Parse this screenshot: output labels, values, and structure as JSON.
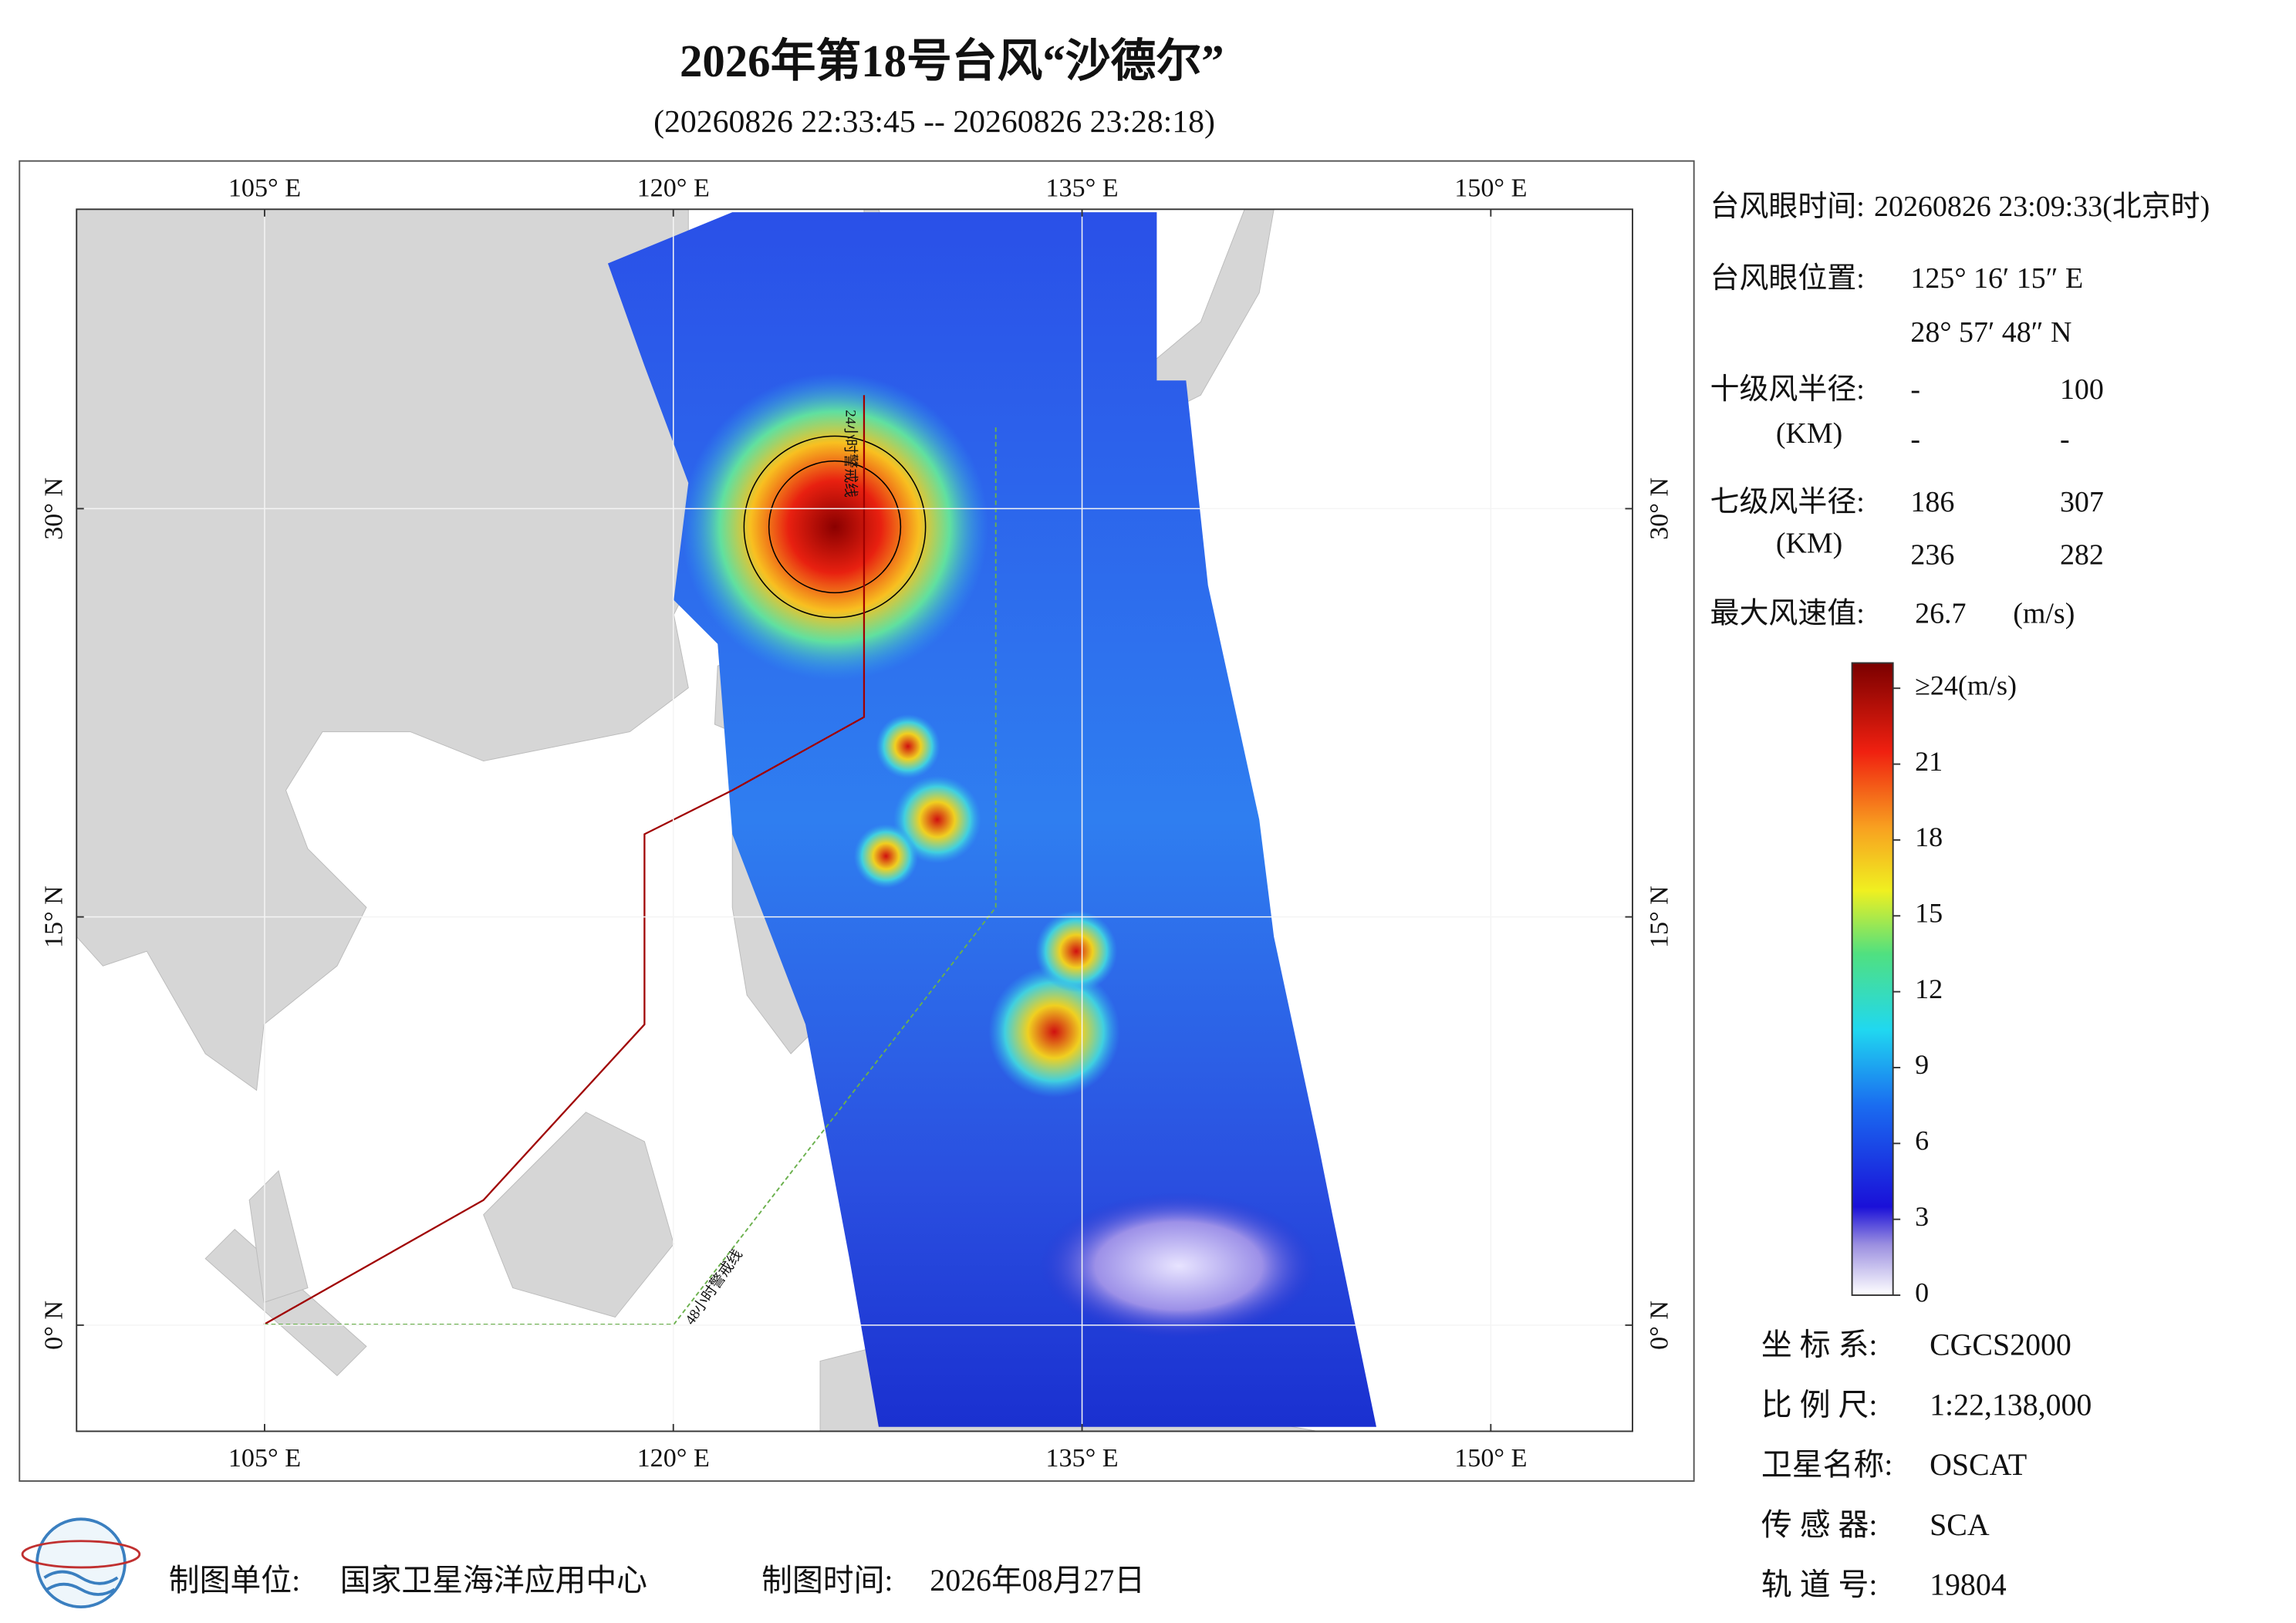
{
  "title": "2026年第18号台风“沙德尔”",
  "subtitle": "(20260826 22:33:45 -- 20260826 23:28:18)",
  "map": {
    "lon_range": [
      98.1,
      155.2
    ],
    "lat_range": [
      -3.9,
      41.0
    ],
    "lon_ticks": [
      {
        "value": 105,
        "label": "105° E"
      },
      {
        "value": 120,
        "label": "120° E"
      },
      {
        "value": 135,
        "label": "135° E"
      },
      {
        "value": 150,
        "label": "150° E"
      }
    ],
    "lat_ticks": [
      {
        "value": 0,
        "label": "0° N"
      },
      {
        "value": 15,
        "label": "15° N"
      },
      {
        "value": 30,
        "label": "30° N"
      }
    ],
    "warning_24h": "24小时警戒线",
    "warning_48h": "48小时警戒线"
  },
  "info": {
    "eye_time": {
      "label": "台风眼时间:",
      "value": "20260826 23:09:33(北京时)"
    },
    "eye_position": {
      "label": "台风眼位置:",
      "lon": "125° 16′ 15″ E",
      "lat": "28° 57′ 48″ N"
    },
    "radius_10": {
      "label": "十级风半径:",
      "unit": "(KM)",
      "values": [
        "-",
        "100",
        "-",
        "-"
      ]
    },
    "radius_7": {
      "label": "七级风半径:",
      "unit": "(KM)",
      "values": [
        186,
        307,
        236,
        282
      ]
    },
    "max_wind": {
      "label": "最大风速值:",
      "value": 26.7,
      "unit": "(m/s)"
    }
  },
  "colorbar": {
    "range": [
      0,
      25
    ],
    "ticks": [
      0,
      3,
      6,
      9,
      12,
      15,
      18,
      21,
      {
        "value": 24,
        "label": "≥24(m/s)"
      }
    ]
  },
  "meta": [
    {
      "label": "坐 标 系:",
      "value": "CGCS2000"
    },
    {
      "label": "比 例 尺:",
      "value": "1:22,138,000"
    },
    {
      "label": "卫星名称:",
      "value": "OSCAT"
    },
    {
      "label": "传 感 器:",
      "value": "SCA"
    },
    {
      "label": "轨 道 号:",
      "value": "19804"
    }
  ],
  "footer": {
    "unit_label": "制图单位:",
    "unit": "国家卫星海洋应用中心",
    "time_label": "制图时间:",
    "time": "2026年08月27日"
  }
}
